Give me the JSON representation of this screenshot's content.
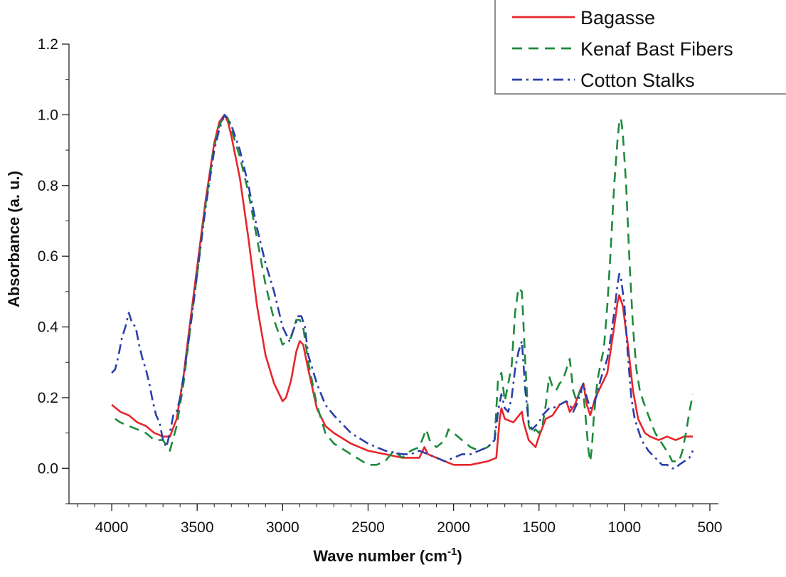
{
  "chart_data": {
    "type": "line",
    "title": "",
    "xlabel": "Wave number (cm",
    "xlabel_sup": "-1",
    "xlabel_end": ")",
    "ylabel": "Absorbance  (a. u.)",
    "xlim": [
      4250,
      450
    ],
    "ylim": [
      -0.1,
      1.2
    ],
    "x_reversed": true,
    "grid": false,
    "legend_position": "top-right",
    "x_ticks": [
      4000,
      3500,
      3000,
      2500,
      2000,
      1500,
      1000,
      500
    ],
    "x_tick_labels": [
      "4000",
      "3500",
      "3000",
      "2500",
      "2000",
      "1500",
      "1000",
      "500"
    ],
    "y_ticks": [
      0.0,
      0.2,
      0.4,
      0.6,
      0.8,
      1.0,
      1.2
    ],
    "y_tick_labels": [
      "0.0",
      "0.2",
      "0.4",
      "0.6",
      "0.8",
      "1.0",
      "1.2"
    ],
    "series": [
      {
        "name": "Bagasse",
        "color": "#e8262b",
        "style": "solid",
        "points": [
          [
            4000,
            0.18
          ],
          [
            3950,
            0.16
          ],
          [
            3900,
            0.15
          ],
          [
            3850,
            0.13
          ],
          [
            3800,
            0.12
          ],
          [
            3750,
            0.1
          ],
          [
            3700,
            0.09
          ],
          [
            3660,
            0.09
          ],
          [
            3620,
            0.14
          ],
          [
            3580,
            0.26
          ],
          [
            3550,
            0.38
          ],
          [
            3500,
            0.57
          ],
          [
            3450,
            0.76
          ],
          [
            3400,
            0.92
          ],
          [
            3370,
            0.98
          ],
          [
            3340,
            1.0
          ],
          [
            3320,
            0.98
          ],
          [
            3300,
            0.94
          ],
          [
            3250,
            0.82
          ],
          [
            3200,
            0.65
          ],
          [
            3150,
            0.46
          ],
          [
            3100,
            0.32
          ],
          [
            3050,
            0.24
          ],
          [
            3000,
            0.19
          ],
          [
            2980,
            0.2
          ],
          [
            2950,
            0.25
          ],
          [
            2920,
            0.33
          ],
          [
            2900,
            0.36
          ],
          [
            2880,
            0.35
          ],
          [
            2850,
            0.28
          ],
          [
            2800,
            0.17
          ],
          [
            2750,
            0.12
          ],
          [
            2700,
            0.1
          ],
          [
            2600,
            0.07
          ],
          [
            2500,
            0.05
          ],
          [
            2400,
            0.04
          ],
          [
            2300,
            0.03
          ],
          [
            2200,
            0.03
          ],
          [
            2170,
            0.06
          ],
          [
            2150,
            0.04
          ],
          [
            2100,
            0.03
          ],
          [
            2050,
            0.02
          ],
          [
            2000,
            0.01
          ],
          [
            1950,
            0.01
          ],
          [
            1900,
            0.01
          ],
          [
            1800,
            0.02
          ],
          [
            1750,
            0.03
          ],
          [
            1730,
            0.14
          ],
          [
            1720,
            0.17
          ],
          [
            1700,
            0.14
          ],
          [
            1650,
            0.13
          ],
          [
            1600,
            0.16
          ],
          [
            1590,
            0.13
          ],
          [
            1560,
            0.08
          ],
          [
            1520,
            0.06
          ],
          [
            1500,
            0.09
          ],
          [
            1460,
            0.14
          ],
          [
            1420,
            0.15
          ],
          [
            1380,
            0.18
          ],
          [
            1340,
            0.19
          ],
          [
            1320,
            0.16
          ],
          [
            1290,
            0.18
          ],
          [
            1260,
            0.22
          ],
          [
            1240,
            0.24
          ],
          [
            1220,
            0.18
          ],
          [
            1200,
            0.15
          ],
          [
            1170,
            0.2
          ],
          [
            1150,
            0.22
          ],
          [
            1100,
            0.27
          ],
          [
            1060,
            0.4
          ],
          [
            1040,
            0.47
          ],
          [
            1030,
            0.49
          ],
          [
            1010,
            0.46
          ],
          [
            980,
            0.35
          ],
          [
            950,
            0.22
          ],
          [
            920,
            0.14
          ],
          [
            880,
            0.1
          ],
          [
            850,
            0.09
          ],
          [
            800,
            0.08
          ],
          [
            750,
            0.09
          ],
          [
            700,
            0.08
          ],
          [
            650,
            0.09
          ],
          [
            600,
            0.09
          ]
        ]
      },
      {
        "name": "Kenaf Bast Fibers",
        "color": "#1f8a3c",
        "style": "dashed",
        "points": [
          [
            3980,
            0.14
          ],
          [
            3950,
            0.13
          ],
          [
            3900,
            0.12
          ],
          [
            3850,
            0.11
          ],
          [
            3800,
            0.1
          ],
          [
            3750,
            0.08
          ],
          [
            3700,
            0.08
          ],
          [
            3660,
            0.05
          ],
          [
            3620,
            0.12
          ],
          [
            3580,
            0.24
          ],
          [
            3550,
            0.36
          ],
          [
            3500,
            0.55
          ],
          [
            3450,
            0.75
          ],
          [
            3400,
            0.91
          ],
          [
            3370,
            0.97
          ],
          [
            3340,
            1.0
          ],
          [
            3320,
            0.99
          ],
          [
            3300,
            0.96
          ],
          [
            3250,
            0.88
          ],
          [
            3200,
            0.78
          ],
          [
            3150,
            0.65
          ],
          [
            3100,
            0.52
          ],
          [
            3050,
            0.42
          ],
          [
            3000,
            0.35
          ],
          [
            2950,
            0.37
          ],
          [
            2920,
            0.42
          ],
          [
            2900,
            0.42
          ],
          [
            2880,
            0.4
          ],
          [
            2850,
            0.3
          ],
          [
            2800,
            0.18
          ],
          [
            2750,
            0.1
          ],
          [
            2700,
            0.07
          ],
          [
            2600,
            0.04
          ],
          [
            2500,
            0.01
          ],
          [
            2450,
            0.01
          ],
          [
            2400,
            0.02
          ],
          [
            2350,
            0.05
          ],
          [
            2300,
            0.03
          ],
          [
            2250,
            0.05
          ],
          [
            2200,
            0.06
          ],
          [
            2160,
            0.11
          ],
          [
            2140,
            0.08
          ],
          [
            2100,
            0.06
          ],
          [
            2050,
            0.08
          ],
          [
            2030,
            0.11
          ],
          [
            2000,
            0.1
          ],
          [
            1950,
            0.08
          ],
          [
            1900,
            0.06
          ],
          [
            1850,
            0.05
          ],
          [
            1800,
            0.06
          ],
          [
            1760,
            0.08
          ],
          [
            1740,
            0.25
          ],
          [
            1720,
            0.27
          ],
          [
            1700,
            0.19
          ],
          [
            1680,
            0.24
          ],
          [
            1660,
            0.29
          ],
          [
            1640,
            0.44
          ],
          [
            1620,
            0.51
          ],
          [
            1600,
            0.5
          ],
          [
            1580,
            0.3
          ],
          [
            1560,
            0.12
          ],
          [
            1540,
            0.1
          ],
          [
            1520,
            0.11
          ],
          [
            1500,
            0.1
          ],
          [
            1480,
            0.12
          ],
          [
            1460,
            0.18
          ],
          [
            1440,
            0.26
          ],
          [
            1420,
            0.23
          ],
          [
            1400,
            0.22
          ],
          [
            1380,
            0.24
          ],
          [
            1360,
            0.25
          ],
          [
            1340,
            0.28
          ],
          [
            1320,
            0.31
          ],
          [
            1300,
            0.22
          ],
          [
            1280,
            0.19
          ],
          [
            1260,
            0.22
          ],
          [
            1240,
            0.21
          ],
          [
            1230,
            0.16
          ],
          [
            1210,
            0.05
          ],
          [
            1200,
            0.02
          ],
          [
            1190,
            0.06
          ],
          [
            1180,
            0.14
          ],
          [
            1160,
            0.24
          ],
          [
            1150,
            0.27
          ],
          [
            1120,
            0.34
          ],
          [
            1100,
            0.46
          ],
          [
            1080,
            0.62
          ],
          [
            1060,
            0.8
          ],
          [
            1040,
            0.93
          ],
          [
            1030,
            0.98
          ],
          [
            1020,
            0.99
          ],
          [
            1010,
            0.95
          ],
          [
            990,
            0.8
          ],
          [
            970,
            0.58
          ],
          [
            950,
            0.4
          ],
          [
            930,
            0.28
          ],
          [
            910,
            0.22
          ],
          [
            890,
            0.19
          ],
          [
            860,
            0.15
          ],
          [
            820,
            0.1
          ],
          [
            780,
            0.07
          ],
          [
            740,
            0.04
          ],
          [
            720,
            0.02
          ],
          [
            700,
            0.02
          ],
          [
            680,
            0.02
          ],
          [
            660,
            0.05
          ],
          [
            640,
            0.1
          ],
          [
            620,
            0.16
          ],
          [
            600,
            0.21
          ]
        ]
      },
      {
        "name": "Cotton Stalks",
        "color": "#2b3fa8",
        "style": "dashdot",
        "points": [
          [
            4000,
            0.27
          ],
          [
            3980,
            0.28
          ],
          [
            3960,
            0.32
          ],
          [
            3940,
            0.37
          ],
          [
            3920,
            0.4
          ],
          [
            3900,
            0.44
          ],
          [
            3880,
            0.41
          ],
          [
            3860,
            0.4
          ],
          [
            3840,
            0.35
          ],
          [
            3820,
            0.31
          ],
          [
            3800,
            0.28
          ],
          [
            3780,
            0.24
          ],
          [
            3760,
            0.19
          ],
          [
            3740,
            0.15
          ],
          [
            3720,
            0.13
          ],
          [
            3700,
            0.08
          ],
          [
            3680,
            0.06
          ],
          [
            3660,
            0.1
          ],
          [
            3640,
            0.15
          ],
          [
            3620,
            0.16
          ],
          [
            3600,
            0.2
          ],
          [
            3580,
            0.26
          ],
          [
            3550,
            0.36
          ],
          [
            3500,
            0.55
          ],
          [
            3450,
            0.74
          ],
          [
            3400,
            0.9
          ],
          [
            3370,
            0.96
          ],
          [
            3340,
            1.0
          ],
          [
            3320,
            0.99
          ],
          [
            3300,
            0.97
          ],
          [
            3250,
            0.9
          ],
          [
            3200,
            0.8
          ],
          [
            3150,
            0.68
          ],
          [
            3100,
            0.58
          ],
          [
            3050,
            0.5
          ],
          [
            3000,
            0.4
          ],
          [
            2960,
            0.36
          ],
          [
            2930,
            0.4
          ],
          [
            2910,
            0.43
          ],
          [
            2890,
            0.43
          ],
          [
            2870,
            0.4
          ],
          [
            2850,
            0.32
          ],
          [
            2800,
            0.24
          ],
          [
            2750,
            0.18
          ],
          [
            2700,
            0.15
          ],
          [
            2600,
            0.1
          ],
          [
            2500,
            0.07
          ],
          [
            2400,
            0.05
          ],
          [
            2300,
            0.04
          ],
          [
            2250,
            0.04
          ],
          [
            2200,
            0.05
          ],
          [
            2150,
            0.04
          ],
          [
            2100,
            0.03
          ],
          [
            2050,
            0.02
          ],
          [
            2000,
            0.03
          ],
          [
            1950,
            0.04
          ],
          [
            1900,
            0.04
          ],
          [
            1800,
            0.06
          ],
          [
            1760,
            0.08
          ],
          [
            1740,
            0.16
          ],
          [
            1720,
            0.21
          ],
          [
            1700,
            0.17
          ],
          [
            1680,
            0.16
          ],
          [
            1660,
            0.2
          ],
          [
            1640,
            0.28
          ],
          [
            1620,
            0.33
          ],
          [
            1600,
            0.36
          ],
          [
            1580,
            0.22
          ],
          [
            1560,
            0.13
          ],
          [
            1540,
            0.11
          ],
          [
            1520,
            0.12
          ],
          [
            1500,
            0.13
          ],
          [
            1480,
            0.15
          ],
          [
            1460,
            0.16
          ],
          [
            1440,
            0.17
          ],
          [
            1420,
            0.17
          ],
          [
            1380,
            0.18
          ],
          [
            1340,
            0.19
          ],
          [
            1320,
            0.18
          ],
          [
            1300,
            0.16
          ],
          [
            1280,
            0.18
          ],
          [
            1260,
            0.21
          ],
          [
            1240,
            0.24
          ],
          [
            1220,
            0.2
          ],
          [
            1200,
            0.17
          ],
          [
            1180,
            0.18
          ],
          [
            1160,
            0.21
          ],
          [
            1140,
            0.25
          ],
          [
            1100,
            0.31
          ],
          [
            1080,
            0.37
          ],
          [
            1060,
            0.44
          ],
          [
            1040,
            0.52
          ],
          [
            1030,
            0.55
          ],
          [
            1020,
            0.54
          ],
          [
            1000,
            0.46
          ],
          [
            980,
            0.32
          ],
          [
            960,
            0.2
          ],
          [
            940,
            0.14
          ],
          [
            900,
            0.08
          ],
          [
            860,
            0.05
          ],
          [
            820,
            0.03
          ],
          [
            780,
            0.01
          ],
          [
            750,
            0.01
          ],
          [
            720,
            0.0
          ],
          [
            700,
            0.0
          ],
          [
            680,
            0.01
          ],
          [
            650,
            0.02
          ],
          [
            620,
            0.03
          ],
          [
            600,
            0.05
          ]
        ]
      }
    ]
  }
}
